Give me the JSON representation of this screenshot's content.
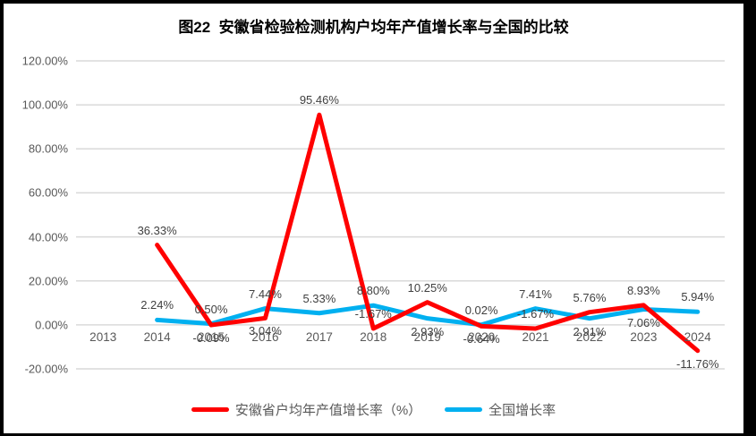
{
  "chart_data": {
    "type": "line",
    "title": "图22  安徽省检验检测机构户均年产值增长率与全国的比较",
    "categories": [
      "2013",
      "2014",
      "2015",
      "2016",
      "2017",
      "2018",
      "2019",
      "2020",
      "2021",
      "2022",
      "2023",
      "2024"
    ],
    "series": [
      {
        "name": "安徽省户均年产值增长率（%）",
        "color": "#FF0000",
        "values": [
          null,
          36.33,
          -0.09,
          3.04,
          95.46,
          -1.67,
          10.25,
          -0.64,
          -1.67,
          5.76,
          8.93,
          -11.76
        ],
        "point_labels": [
          "",
          "36.33%",
          "-0.09%",
          "3.04%",
          "95.46%",
          "-1.67%",
          "10.25%",
          "-0.64%",
          "-1.67%",
          "5.76%",
          "8.93%",
          "-11.76%"
        ],
        "label_side": [
          "",
          "above",
          "below",
          "below",
          "above",
          "above",
          "above",
          "below",
          "above",
          "above",
          "above",
          "below"
        ]
      },
      {
        "name": "全国增长率",
        "color": "#00B0F0",
        "values": [
          null,
          2.24,
          0.5,
          7.44,
          5.33,
          8.8,
          2.93,
          0.02,
          7.41,
          2.91,
          7.06,
          5.94
        ],
        "point_labels": [
          "",
          "2.24%",
          "0.50%",
          "7.44%",
          "5.33%",
          "8.80%",
          "2.93%",
          "0.02%",
          "7.41%",
          "2.91%",
          "7.06%",
          "5.94%"
        ],
        "label_side": [
          "",
          "above",
          "above",
          "above",
          "above",
          "above",
          "below",
          "above",
          "above",
          "below",
          "below",
          "above"
        ]
      }
    ],
    "yticks": {
      "values": [
        120,
        100,
        80,
        60,
        40,
        20,
        0,
        -20
      ],
      "labels": [
        "120.00%",
        "100.00%",
        "80.00%",
        "60.00%",
        "40.00%",
        "20.00%",
        "0.00%",
        "-20.00%"
      ]
    },
    "ylim": [
      -20,
      120
    ],
    "grid": true,
    "grid_color": "#D9D9D9",
    "axis_text_color": "#595959",
    "legend_position": "bottom",
    "xlabel": "",
    "ylabel": ""
  }
}
